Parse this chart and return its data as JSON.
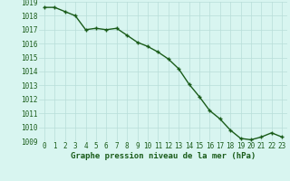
{
  "x": [
    0,
    1,
    2,
    3,
    4,
    5,
    6,
    7,
    8,
    9,
    10,
    11,
    12,
    13,
    14,
    15,
    16,
    17,
    18,
    19,
    20,
    21,
    22,
    23
  ],
  "y": [
    1018.6,
    1018.6,
    1018.3,
    1018.0,
    1017.0,
    1017.1,
    1017.0,
    1017.1,
    1016.6,
    1016.1,
    1015.8,
    1015.4,
    1014.9,
    1014.2,
    1013.1,
    1012.2,
    1011.2,
    1010.6,
    1009.8,
    1009.2,
    1009.1,
    1009.3,
    1009.6,
    1009.3
  ],
  "ylim": [
    1009,
    1019
  ],
  "xlim_min": -0.5,
  "xlim_max": 23.5,
  "yticks": [
    1009,
    1010,
    1011,
    1012,
    1013,
    1014,
    1015,
    1016,
    1017,
    1018,
    1019
  ],
  "xticks": [
    0,
    1,
    2,
    3,
    4,
    5,
    6,
    7,
    8,
    9,
    10,
    11,
    12,
    13,
    14,
    15,
    16,
    17,
    18,
    19,
    20,
    21,
    22,
    23
  ],
  "xlabel": "Graphe pression niveau de la mer (hPa)",
  "line_color": "#1a5c1a",
  "marker": "+",
  "marker_color": "#1a5c1a",
  "bg_color": "#d8f5f0",
  "grid_color": "#b8ddd8",
  "tick_label_color": "#1a5c1a",
  "xlabel_color": "#1a5c1a",
  "xlabel_fontsize": 6.5,
  "tick_fontsize": 5.5,
  "line_width": 1.0,
  "marker_size": 3.5
}
